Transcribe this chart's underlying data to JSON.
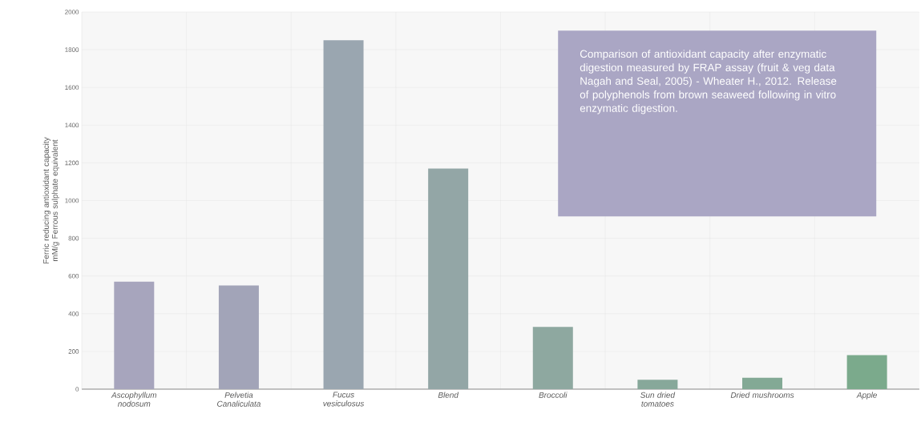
{
  "chart_data": {
    "type": "bar",
    "ylabel": "Ferric reducing antioxidant capacity mM/g Ferrous sulphate equivalent",
    "categories": [
      "Ascophyllum nodosum",
      "Pelvetia Canaliculata",
      "Fucus vesiculosus",
      "Blend",
      "Broccoli",
      "Sun dried tomatoes",
      "Dried mushrooms",
      "Apple"
    ],
    "values": [
      570,
      550,
      1850,
      1170,
      330,
      50,
      60,
      180
    ],
    "colors": [
      "#a7a5bd",
      "#a2a4b8",
      "#9aa6b0",
      "#93a6a6",
      "#8ea8a0",
      "#87a89a",
      "#83a995",
      "#7baa8c"
    ],
    "ylim": [
      0,
      2000
    ],
    "yticks": [
      0,
      200,
      400,
      600,
      800,
      1000,
      1200,
      1400,
      1600,
      1800,
      2000
    ],
    "grid": true,
    "annotations": [
      "Comparison of antioxidant capacity after enzymatic digestion measured by FRAP assay (fruit & veg data Nagah and Seal, 2005) - Wheater H., 2012. Release of polyphenols from brown seaweed following in vitro enzymatic digestion."
    ]
  }
}
